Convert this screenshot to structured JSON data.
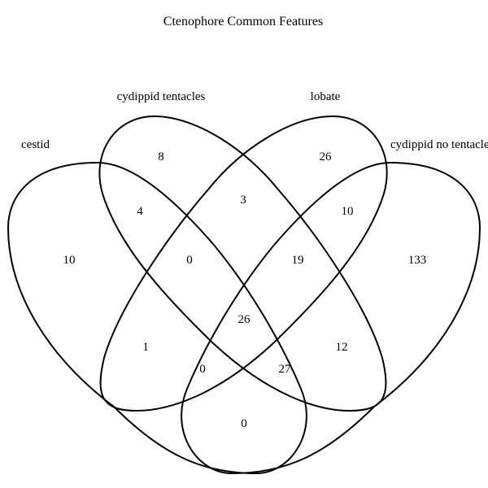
{
  "title": "Ctenophore Common Features",
  "sets": {
    "cestid": "cestid",
    "cydippid_tentacles": "cydippid tentacles",
    "lobate": "lobate",
    "cydippid_no_tentacles": "cydippid no tentacles"
  },
  "regions": {
    "cestid_only": "10",
    "cydippid_tentacles_only": "8",
    "lobate_only": "26",
    "cydippid_no_tentacles_only": "133",
    "cestid_cydippid_tentacles": "4",
    "cydippid_tentacles_lobate": "3",
    "lobate_cydippid_no_tentacles": "10",
    "cestid_cydippid_tentacles_lobate": "0",
    "cydippid_tentacles_lobate_cydippid_no_tentacles": "19",
    "cestid_lobate": "1",
    "all_four": "26",
    "cydippid_tentacles_cydippid_no_tentacles": "12",
    "cestid_lobate_cydippid_no_tentacles": "0",
    "cestid_cydippid_tentacles_cydippid_no_tentacles": "27",
    "cestid_cydippid_no_tentacles": "0"
  },
  "colors": {
    "stroke": "#000000",
    "background": "#ffffff",
    "text": "#000000"
  }
}
